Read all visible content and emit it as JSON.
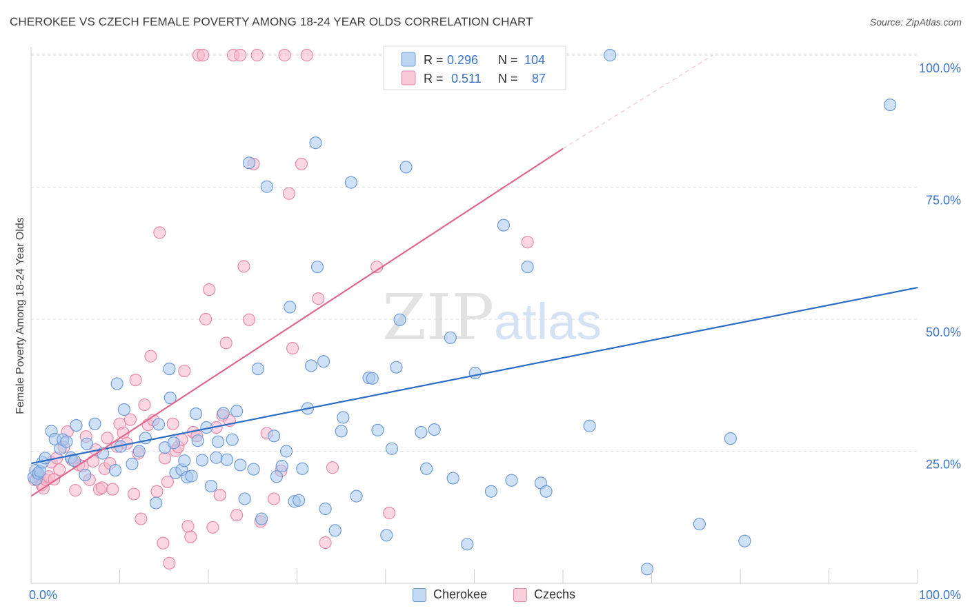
{
  "header": {
    "title": "CHEROKEE VS CZECH FEMALE POVERTY AMONG 18-24 YEAR OLDS CORRELATION CHART",
    "source": "Source: ZipAtlas.com"
  },
  "watermark": {
    "zip": "ZIP",
    "atlas": "atlas"
  },
  "colors": {
    "cherokee_fill": "#a8c8ef",
    "cherokee_stroke": "#6f9ad8",
    "cherokee_line": "#2b6cc4",
    "czechs_fill": "#f6b7ca",
    "czechs_stroke": "#e88aa8",
    "czechs_line": "#e0668e",
    "axis_text": "#3a73c8",
    "grid": "#dcdcdc"
  },
  "legend_top": {
    "rows": [
      {
        "r_label": "R =",
        "r_value": "0.296",
        "n_label": "N =",
        "n_value": "104"
      },
      {
        "r_label": "R =",
        "r_value": "0.511",
        "n_label": "N =",
        "n_value": "87"
      }
    ]
  },
  "legend_bottom": {
    "cherokee": "Cherokee",
    "czechs": "Czechs"
  },
  "chart_data": {
    "type": "scatter",
    "title": "CHEROKEE VS CZECH FEMALE POVERTY AMONG 18-24 YEAR OLDS CORRELATION CHART",
    "xlabel": "",
    "ylabel": "Female Poverty Among 18-24 Year Olds",
    "xlim": [
      0,
      100
    ],
    "ylim": [
      0,
      100
    ],
    "x_tick_labels": [
      "0.0%",
      "100.0%"
    ],
    "y_tick_labels": [
      "25.0%",
      "50.0%",
      "75.0%",
      "100.0%"
    ],
    "y_ticks": [
      25,
      50,
      75,
      100
    ],
    "grid": true,
    "legend_position": "top-center",
    "series": [
      {
        "name": "Cherokee",
        "r": 0.296,
        "n": 104,
        "trend": {
          "x": [
            0,
            100
          ],
          "y": [
            22.7,
            56.0
          ]
        },
        "points": [
          [
            0.3,
            20.1
          ],
          [
            0.5,
            21.4
          ],
          [
            0.6,
            19.7
          ],
          [
            0.8,
            20.8
          ],
          [
            1.0,
            21.2
          ],
          [
            1.3,
            22.9
          ],
          [
            1.6,
            23.7
          ],
          [
            2.3,
            28.8
          ],
          [
            2.7,
            27.3
          ],
          [
            3.3,
            25.5
          ],
          [
            3.6,
            27.2
          ],
          [
            4.0,
            26.8
          ],
          [
            4.5,
            23.8
          ],
          [
            4.9,
            23.2
          ],
          [
            5.1,
            29.9
          ],
          [
            6.1,
            20.5
          ],
          [
            6.3,
            26.4
          ],
          [
            7.2,
            30.2
          ],
          [
            8.1,
            24.6
          ],
          [
            9.5,
            21.4
          ],
          [
            9.7,
            37.8
          ],
          [
            10.1,
            25.9
          ],
          [
            10.5,
            32.9
          ],
          [
            11.4,
            22.6
          ],
          [
            12.2,
            25.0
          ],
          [
            12.9,
            27.5
          ],
          [
            14.1,
            15.2
          ],
          [
            14.4,
            30.1
          ],
          [
            15.1,
            25.7
          ],
          [
            15.6,
            40.6
          ],
          [
            15.7,
            35.1
          ],
          [
            16.1,
            26.6
          ],
          [
            16.3,
            20.9
          ],
          [
            17.0,
            21.5
          ],
          [
            17.3,
            23.2
          ],
          [
            17.6,
            20.1
          ],
          [
            18.1,
            20.3
          ],
          [
            18.6,
            32.1
          ],
          [
            18.8,
            27.0
          ],
          [
            19.3,
            23.3
          ],
          [
            19.8,
            29.5
          ],
          [
            20.3,
            18.4
          ],
          [
            20.9,
            23.8
          ],
          [
            21.1,
            26.8
          ],
          [
            21.7,
            32.2
          ],
          [
            22.1,
            23.4
          ],
          [
            22.7,
            27.2
          ],
          [
            23.2,
            32.6
          ],
          [
            23.6,
            22.4
          ],
          [
            24.1,
            16.0
          ],
          [
            24.6,
            79.6
          ],
          [
            25.1,
            21.6
          ],
          [
            25.6,
            40.6
          ],
          [
            26.0,
            12.2
          ],
          [
            26.6,
            75.1
          ],
          [
            27.4,
            27.9
          ],
          [
            27.7,
            20.2
          ],
          [
            28.3,
            22.2
          ],
          [
            28.8,
            25.0
          ],
          [
            29.2,
            52.3
          ],
          [
            29.7,
            15.5
          ],
          [
            30.2,
            15.7
          ],
          [
            30.6,
            21.7
          ],
          [
            31.2,
            33.1
          ],
          [
            31.6,
            41.2
          ],
          [
            32.1,
            83.4
          ],
          [
            32.3,
            59.9
          ],
          [
            33.0,
            42.0
          ],
          [
            33.2,
            14.1
          ],
          [
            34.3,
            10.0
          ],
          [
            35.0,
            28.8
          ],
          [
            35.2,
            31.4
          ],
          [
            36.1,
            75.9
          ],
          [
            36.7,
            16.5
          ],
          [
            38.1,
            38.9
          ],
          [
            38.5,
            38.8
          ],
          [
            39.1,
            29.0
          ],
          [
            40.1,
            9.1
          ],
          [
            40.7,
            25.5
          ],
          [
            41.2,
            40.9
          ],
          [
            41.6,
            49.9
          ],
          [
            42.3,
            78.8
          ],
          [
            44.0,
            28.6
          ],
          [
            44.6,
            21.7
          ],
          [
            45.5,
            29.1
          ],
          [
            47.3,
            46.5
          ],
          [
            47.6,
            19.9
          ],
          [
            49.2,
            7.4
          ],
          [
            50.1,
            39.8
          ],
          [
            51.9,
            17.4
          ],
          [
            53.3,
            67.8
          ],
          [
            54.2,
            19.5
          ],
          [
            56.0,
            59.9
          ],
          [
            57.5,
            19.0
          ],
          [
            58.1,
            17.4
          ],
          [
            63.0,
            29.8
          ],
          [
            65.3,
            100
          ],
          [
            69.5,
            2.7
          ],
          [
            75.4,
            11.2
          ],
          [
            78.9,
            27.4
          ],
          [
            80.5,
            8.0
          ],
          [
            96.9,
            90.6
          ],
          [
            52.5,
            100
          ],
          [
            54.6,
            100
          ]
        ]
      },
      {
        "name": "Czechs",
        "r": 0.511,
        "n": 87,
        "trend": {
          "x": [
            0,
            60
          ],
          "y": [
            16.5,
            82.3
          ]
        },
        "trend_dashed": {
          "x": [
            60,
            76.9
          ],
          "y": [
            82.3,
            100
          ]
        },
        "points": [
          [
            0.4,
            19.6
          ],
          [
            0.7,
            20.6
          ],
          [
            1.0,
            19.9
          ],
          [
            1.2,
            18.6
          ],
          [
            1.4,
            18.0
          ],
          [
            1.7,
            19.6
          ],
          [
            2.0,
            20.2
          ],
          [
            2.3,
            22.9
          ],
          [
            2.6,
            19.7
          ],
          [
            2.9,
            23.7
          ],
          [
            3.2,
            21.5
          ],
          [
            3.7,
            25.8
          ],
          [
            4.1,
            28.7
          ],
          [
            4.6,
            23.4
          ],
          [
            5.0,
            17.6
          ],
          [
            5.4,
            22.4
          ],
          [
            5.8,
            22.2
          ],
          [
            6.2,
            27.8
          ],
          [
            6.6,
            19.6
          ],
          [
            7.0,
            23.1
          ],
          [
            7.3,
            25.3
          ],
          [
            7.7,
            17.8
          ],
          [
            8.0,
            18.1
          ],
          [
            8.3,
            21.7
          ],
          [
            8.6,
            27.5
          ],
          [
            8.9,
            22.7
          ],
          [
            9.2,
            17.8
          ],
          [
            9.7,
            25.9
          ],
          [
            10.0,
            30.2
          ],
          [
            10.4,
            28.5
          ],
          [
            10.8,
            26.5
          ],
          [
            11.2,
            31.0
          ],
          [
            11.6,
            16.9
          ],
          [
            11.8,
            38.5
          ],
          [
            12.1,
            24.6
          ],
          [
            12.4,
            12.2
          ],
          [
            12.8,
            33.8
          ],
          [
            13.2,
            30.0
          ],
          [
            13.5,
            43.0
          ],
          [
            13.8,
            30.9
          ],
          [
            14.2,
            17.4
          ],
          [
            14.5,
            66.4
          ],
          [
            14.9,
            7.6
          ],
          [
            15.1,
            23.7
          ],
          [
            15.4,
            19.2
          ],
          [
            15.6,
            3.8
          ],
          [
            16.0,
            30.2
          ],
          [
            16.3,
            25.1
          ],
          [
            16.6,
            25.8
          ],
          [
            17.0,
            27.2
          ],
          [
            17.3,
            40.2
          ],
          [
            17.7,
            10.8
          ],
          [
            18.0,
            8.8
          ],
          [
            18.3,
            28.6
          ],
          [
            18.7,
            27.9
          ],
          [
            18.9,
            100
          ],
          [
            19.4,
            100
          ],
          [
            19.7,
            50.0
          ],
          [
            20.1,
            55.6
          ],
          [
            20.5,
            10.6
          ],
          [
            20.9,
            29.5
          ],
          [
            21.3,
            16.7
          ],
          [
            21.6,
            31.8
          ],
          [
            22.0,
            45.5
          ],
          [
            22.4,
            30.8
          ],
          [
            22.8,
            100
          ],
          [
            23.2,
            12.9
          ],
          [
            23.6,
            100
          ],
          [
            24.0,
            60.0
          ],
          [
            24.6,
            49.9
          ],
          [
            25.1,
            79.4
          ],
          [
            25.5,
            100
          ],
          [
            25.9,
            11.7
          ],
          [
            26.6,
            28.4
          ],
          [
            27.4,
            16.0
          ],
          [
            28.2,
            21.3
          ],
          [
            28.6,
            100
          ],
          [
            29.1,
            73.8
          ],
          [
            29.5,
            44.5
          ],
          [
            30.5,
            79.4
          ],
          [
            31.1,
            100
          ],
          [
            32.4,
            53.9
          ],
          [
            33.2,
            7.7
          ],
          [
            34.0,
            21.9
          ],
          [
            39.0,
            59.9
          ],
          [
            40.4,
            13.3
          ],
          [
            56.0,
            64.6
          ]
        ]
      }
    ]
  }
}
